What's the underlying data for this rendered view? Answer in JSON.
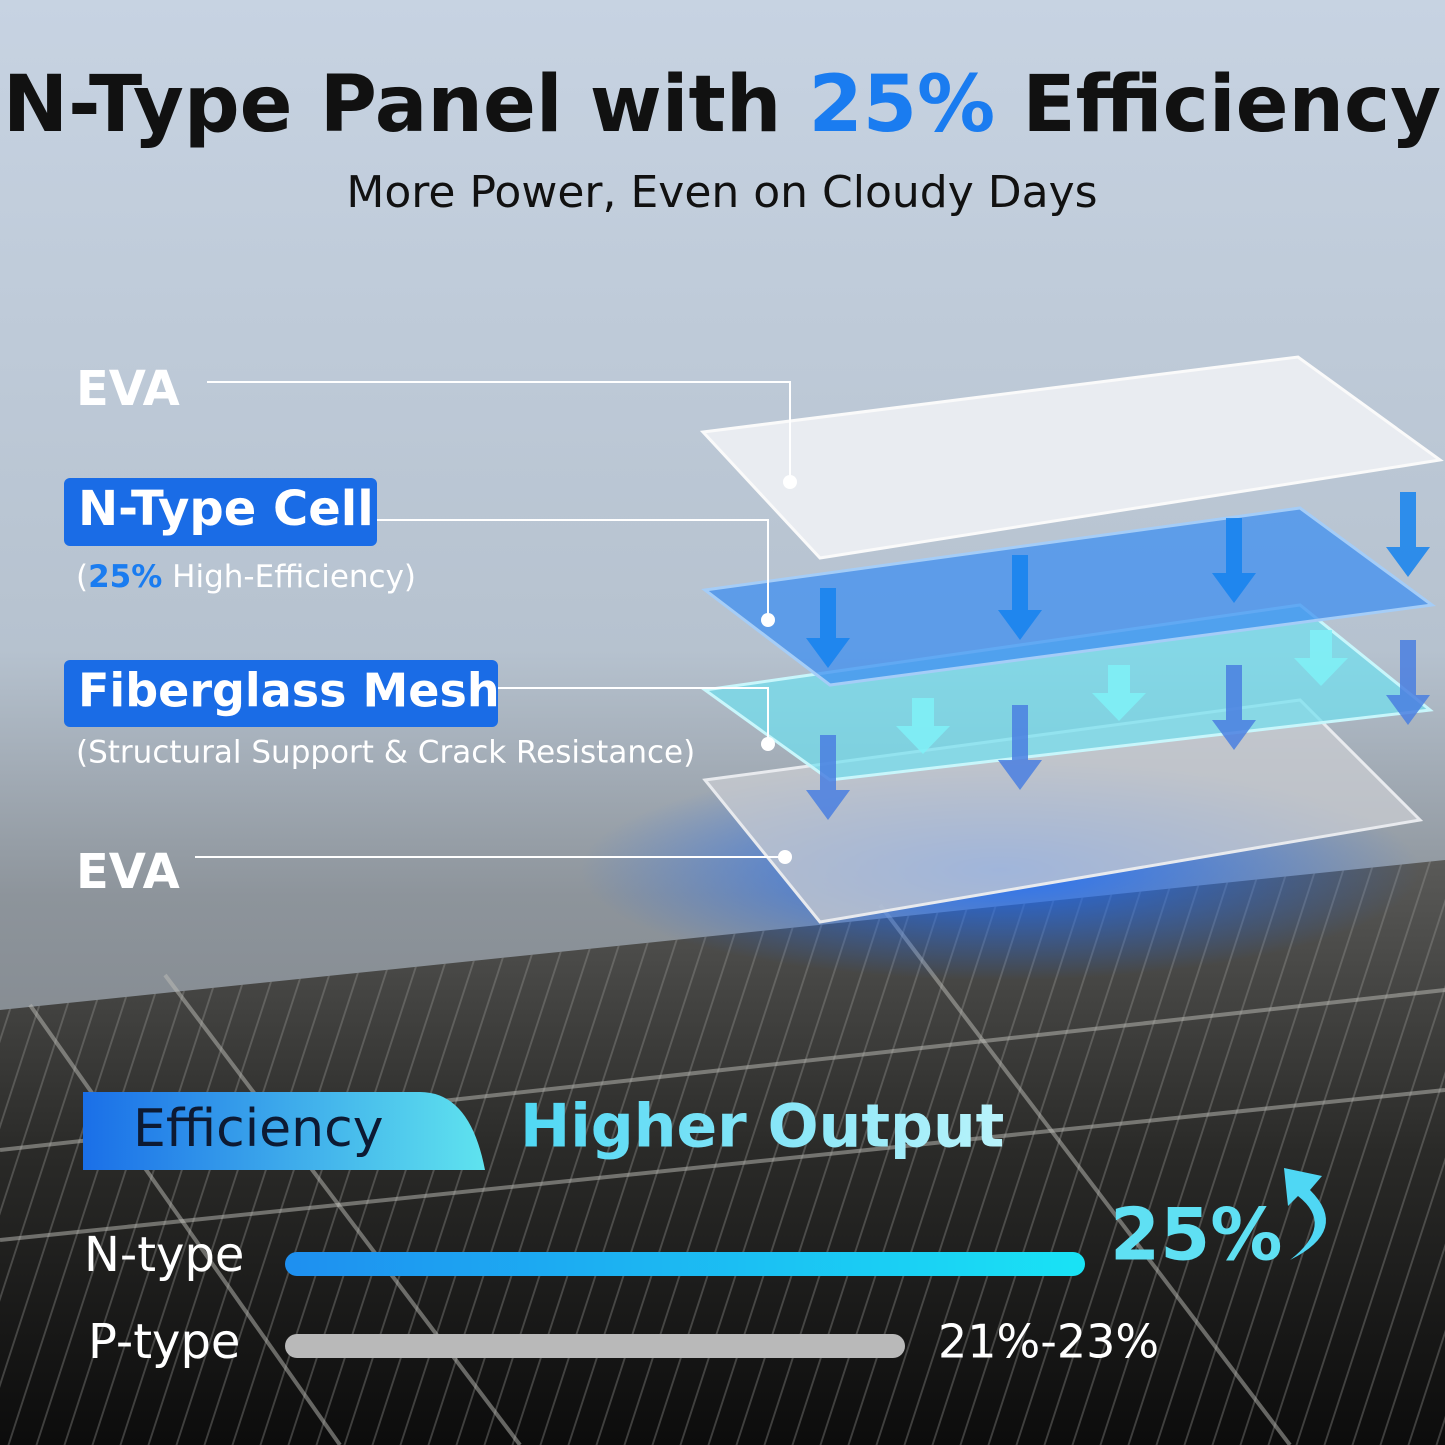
{
  "header": {
    "title_start": "N-Type Panel with",
    "title_highlight": "25%",
    "title_end": "Efficiency",
    "subtitle": "More Power, Even on Cloudy Days"
  },
  "layers": [
    {
      "label": "EVA"
    },
    {
      "label": "N-Type Cell",
      "note_parts": [
        "(",
        "25%",
        "High-Efficiency)"
      ]
    },
    {
      "label": "Fiberglass Mesh",
      "note": "(Structural Support & Crack Resistance)"
    },
    {
      "label": "EVA"
    }
  ],
  "comparison": {
    "tab": "Efficiency",
    "headline": "Higher Output",
    "rows": [
      {
        "label": "N-type",
        "value_label": "25%"
      },
      {
        "label": "P-type",
        "value_label": "21%-23%"
      }
    ]
  }
}
